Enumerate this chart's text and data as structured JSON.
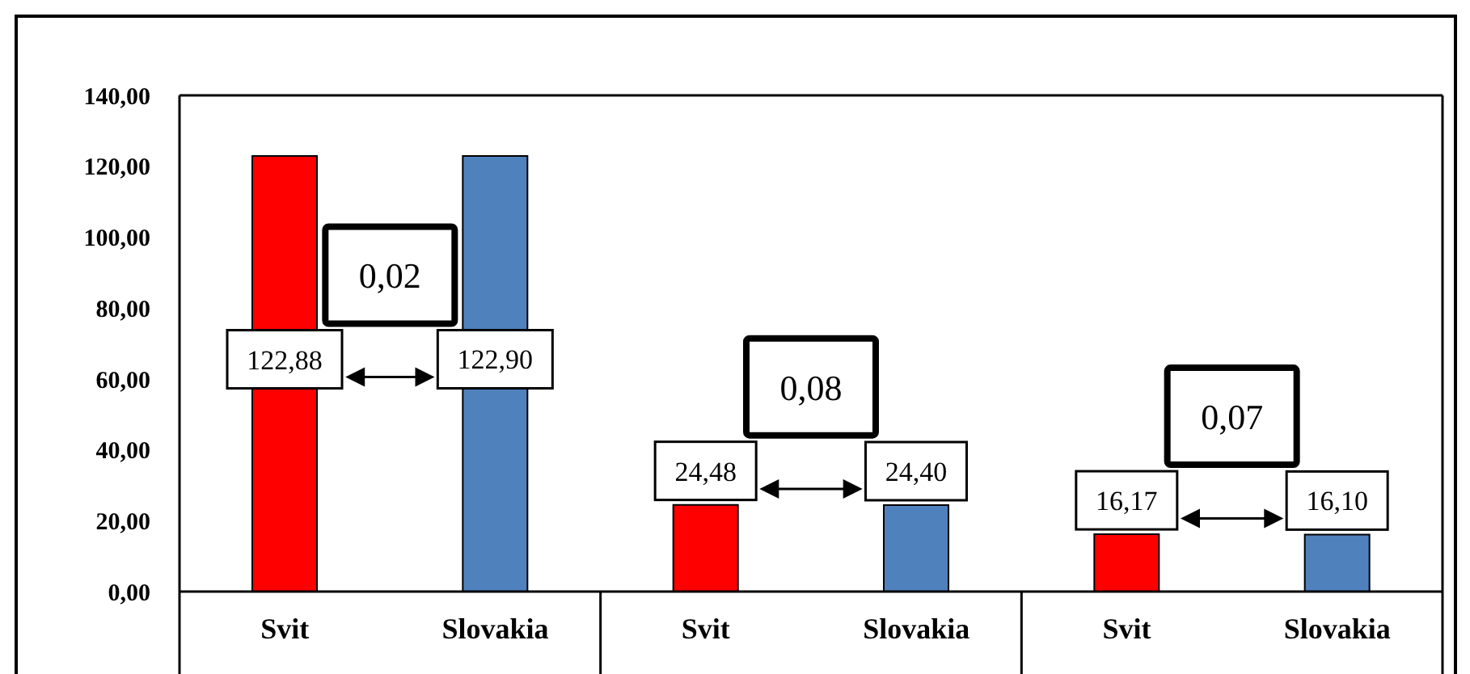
{
  "chart_data": {
    "type": "bar",
    "categories": [
      "Svit",
      "Slovakia",
      "Svit",
      "Slovakia",
      "Svit",
      "Slovakia"
    ],
    "values": [
      122.88,
      122.9,
      24.48,
      24.4,
      16.17,
      16.1
    ],
    "colors": [
      "#ff0000",
      "#4f81bd",
      "#ff0000",
      "#4f81bd",
      "#ff0000",
      "#4f81bd"
    ],
    "value_labels": [
      "122,88",
      "122,90",
      "24,48",
      "24,40",
      "16,17",
      "16,10"
    ],
    "annotations": [
      "0,02",
      "0,08",
      "0,07"
    ],
    "ylim": [
      0,
      140
    ],
    "yticks": [
      {
        "value": 0,
        "label": "0,00"
      },
      {
        "value": 20,
        "label": "20,00"
      },
      {
        "value": 40,
        "label": "40,00"
      },
      {
        "value": 60,
        "label": "60,00"
      },
      {
        "value": 80,
        "label": "80,00"
      },
      {
        "value": 100,
        "label": "100,00"
      },
      {
        "value": 120,
        "label": "120,00"
      },
      {
        "value": 140,
        "label": "140,00"
      }
    ]
  }
}
